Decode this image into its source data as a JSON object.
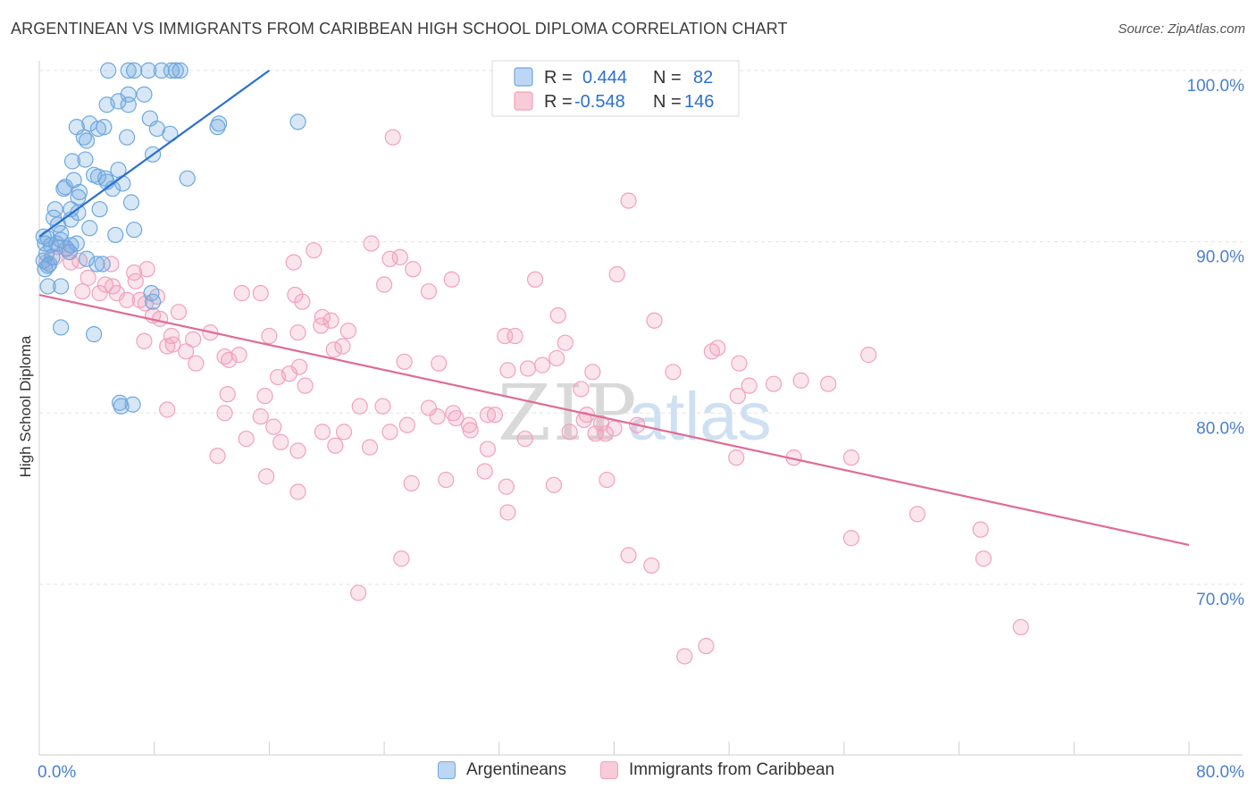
{
  "title": "ARGENTINEAN VS IMMIGRANTS FROM CARIBBEAN HIGH SCHOOL DIPLOMA CORRELATION CHART",
  "source": "Source: ZipAtlas.com",
  "chart_data": {
    "type": "scatter",
    "title": "ARGENTINEAN VS IMMIGRANTS FROM CARIBBEAN HIGH SCHOOL DIPLOMA CORRELATION CHART",
    "ylabel": "High School Diploma",
    "xlabel": "",
    "xlim": [
      0,
      80
    ],
    "ylim": [
      60,
      101
    ],
    "x_tick_labels": [
      "0.0%",
      "80.0%"
    ],
    "y_ticks": [
      70,
      80,
      90,
      100
    ],
    "y_tick_labels": [
      "70.0%",
      "80.0%",
      "90.0%",
      "100.0%"
    ],
    "grid": true,
    "watermark": "ZIPatlas",
    "legend_top": [
      {
        "r_label": "R =",
        "r_value": "0.444",
        "n_label": "N =",
        "n_value": "82"
      },
      {
        "r_label": "R =",
        "r_value": "-0.548",
        "n_label": "N =",
        "n_value": "146"
      }
    ],
    "series": [
      {
        "name": "Argentineans",
        "color": "#6fa8e0",
        "line_color": "#2b6fd1",
        "trendline": {
          "x": [
            0,
            16
          ],
          "y": [
            90.3,
            100.0
          ]
        },
        "points": [
          [
            4.8,
            100
          ],
          [
            6.2,
            100
          ],
          [
            6.6,
            100
          ],
          [
            7.6,
            100
          ],
          [
            8.5,
            100
          ],
          [
            9.2,
            100
          ],
          [
            9.5,
            100
          ],
          [
            9.8,
            100
          ],
          [
            6.2,
            98.6
          ],
          [
            7.3,
            98.6
          ],
          [
            4.7,
            98.0
          ],
          [
            6.2,
            98.0
          ],
          [
            5.5,
            98.2
          ],
          [
            7.7,
            97.2
          ],
          [
            3.5,
            96.9
          ],
          [
            2.6,
            96.7
          ],
          [
            4.1,
            96.6
          ],
          [
            4.5,
            96.7
          ],
          [
            12.5,
            96.9
          ],
          [
            12.4,
            96.7
          ],
          [
            18,
            97
          ],
          [
            8.2,
            96.6
          ],
          [
            3.1,
            96.1
          ],
          [
            6.1,
            96.1
          ],
          [
            9.1,
            96.3
          ],
          [
            3.3,
            95.9
          ],
          [
            7.9,
            95.1
          ],
          [
            3.2,
            94.8
          ],
          [
            2.3,
            94.7
          ],
          [
            5.5,
            94.2
          ],
          [
            3.8,
            93.9
          ],
          [
            4.1,
            93.8
          ],
          [
            4.6,
            93.7
          ],
          [
            10.3,
            93.7
          ],
          [
            4.7,
            93.5
          ],
          [
            2.4,
            93.6
          ],
          [
            5.8,
            93.4
          ],
          [
            1.7,
            93.1
          ],
          [
            1.8,
            93.2
          ],
          [
            2.8,
            92.9
          ],
          [
            5.1,
            93.1
          ],
          [
            2.7,
            92.6
          ],
          [
            6.4,
            92.3
          ],
          [
            2.2,
            91.9
          ],
          [
            1.1,
            91.9
          ],
          [
            2.7,
            91.7
          ],
          [
            4.2,
            91.9
          ],
          [
            1.0,
            91.4
          ],
          [
            1.3,
            91.0
          ],
          [
            2.2,
            91.3
          ],
          [
            0.6,
            90.2
          ],
          [
            1.5,
            90.5
          ],
          [
            5.3,
            90.4
          ],
          [
            3.5,
            90.8
          ],
          [
            6.6,
            90.7
          ],
          [
            0.4,
            89.9
          ],
          [
            0.8,
            89.8
          ],
          [
            1.2,
            89.9
          ],
          [
            2.2,
            89.8
          ],
          [
            1.5,
            90.1
          ],
          [
            0.5,
            89.3
          ],
          [
            0.3,
            88.9
          ],
          [
            0.7,
            88.7
          ],
          [
            3.3,
            89.0
          ],
          [
            4.0,
            88.7
          ],
          [
            4.4,
            88.7
          ],
          [
            1.5,
            87.4
          ],
          [
            0.6,
            87.4
          ],
          [
            0.4,
            88.4
          ],
          [
            2.6,
            89.9
          ],
          [
            7.8,
            87.0
          ],
          [
            7.9,
            86.5
          ],
          [
            1.5,
            85.0
          ],
          [
            3.8,
            84.6
          ],
          [
            5.6,
            80.6
          ],
          [
            5.7,
            80.4
          ],
          [
            6.5,
            80.5
          ],
          [
            0.3,
            90.3
          ],
          [
            0.9,
            89.1
          ],
          [
            1.9,
            89.6
          ],
          [
            0.6,
            88.6
          ],
          [
            2.1,
            89.4
          ]
        ]
      },
      {
        "name": "Immigrants from Caribbean",
        "color": "#f2a1bb",
        "line_color": "#e06b93",
        "trendline": {
          "x": [
            0,
            80
          ],
          "y": [
            86.9,
            72.3
          ]
        },
        "points": [
          [
            24.6,
            96.1
          ],
          [
            41.0,
            92.4
          ],
          [
            23.1,
            89.9
          ],
          [
            19.1,
            89.5
          ],
          [
            24.4,
            89.0
          ],
          [
            25.1,
            89.1
          ],
          [
            17.7,
            88.8
          ],
          [
            26.0,
            88.4
          ],
          [
            40.2,
            88.1
          ],
          [
            28.7,
            87.8
          ],
          [
            34.5,
            87.8
          ],
          [
            24.0,
            87.5
          ],
          [
            27.1,
            87.1
          ],
          [
            14.1,
            87.0
          ],
          [
            15.4,
            87.0
          ],
          [
            17.8,
            86.9
          ],
          [
            18.3,
            86.5
          ],
          [
            36.1,
            85.7
          ],
          [
            19.7,
            85.6
          ],
          [
            20.3,
            85.4
          ],
          [
            19.6,
            85.1
          ],
          [
            42.8,
            85.4
          ],
          [
            21.5,
            84.8
          ],
          [
            18.0,
            84.7
          ],
          [
            16.0,
            84.5
          ],
          [
            32.4,
            84.5
          ],
          [
            33.1,
            84.5
          ],
          [
            36.6,
            84.1
          ],
          [
            21.1,
            83.9
          ],
          [
            20.5,
            83.7
          ],
          [
            47.2,
            83.8
          ],
          [
            46.8,
            83.6
          ],
          [
            57.7,
            83.4
          ],
          [
            13.9,
            83.4
          ],
          [
            13.2,
            83.1
          ],
          [
            12.9,
            83.3
          ],
          [
            10.9,
            82.9
          ],
          [
            25.4,
            83.0
          ],
          [
            27.8,
            82.9
          ],
          [
            32.6,
            82.5
          ],
          [
            34.0,
            82.6
          ],
          [
            35.0,
            82.8
          ],
          [
            36.0,
            83.2
          ],
          [
            38.5,
            82.4
          ],
          [
            44.1,
            82.4
          ],
          [
            48.7,
            82.9
          ],
          [
            51.1,
            81.7
          ],
          [
            53.0,
            81.9
          ],
          [
            16.6,
            82.1
          ],
          [
            18.1,
            82.7
          ],
          [
            17.4,
            82.3
          ],
          [
            18.5,
            81.6
          ],
          [
            54.9,
            81.7
          ],
          [
            37.7,
            81.4
          ],
          [
            49.4,
            81.6
          ],
          [
            48.6,
            81.0
          ],
          [
            13.1,
            81.1
          ],
          [
            15.7,
            81.0
          ],
          [
            27.1,
            80.3
          ],
          [
            22.3,
            80.4
          ],
          [
            23.9,
            80.4
          ],
          [
            28.8,
            80.0
          ],
          [
            29.0,
            79.7
          ],
          [
            29.9,
            79.3
          ],
          [
            27.7,
            79.8
          ],
          [
            31.2,
            79.9
          ],
          [
            31.7,
            79.9
          ],
          [
            38.1,
            79.9
          ],
          [
            37.9,
            79.6
          ],
          [
            40.0,
            79.1
          ],
          [
            41.6,
            79.3
          ],
          [
            39.1,
            79.4
          ],
          [
            39.4,
            78.8
          ],
          [
            36.9,
            78.9
          ],
          [
            30.0,
            79.0
          ],
          [
            38.7,
            78.8
          ],
          [
            19.7,
            78.9
          ],
          [
            21.2,
            78.9
          ],
          [
            16.3,
            79.2
          ],
          [
            12.9,
            80.0
          ],
          [
            15.4,
            79.8
          ],
          [
            25.6,
            79.3
          ],
          [
            24.4,
            78.9
          ],
          [
            23.0,
            78.0
          ],
          [
            14.4,
            78.5
          ],
          [
            8.9,
            80.2
          ],
          [
            9.2,
            84.5
          ],
          [
            20.6,
            78.1
          ],
          [
            18.0,
            77.8
          ],
          [
            33.8,
            78.5
          ],
          [
            31.2,
            77.9
          ],
          [
            12.4,
            77.5
          ],
          [
            16.8,
            78.3
          ],
          [
            48.5,
            77.4
          ],
          [
            52.5,
            77.4
          ],
          [
            56.5,
            77.4
          ],
          [
            31.0,
            76.6
          ],
          [
            28.3,
            76.1
          ],
          [
            25.9,
            75.9
          ],
          [
            35.8,
            75.8
          ],
          [
            32.5,
            75.7
          ],
          [
            39.5,
            76.1
          ],
          [
            15.8,
            76.3
          ],
          [
            18.0,
            75.4
          ],
          [
            32.6,
            74.2
          ],
          [
            61.1,
            74.1
          ],
          [
            56.5,
            72.7
          ],
          [
            65.5,
            73.2
          ],
          [
            65.7,
            71.5
          ],
          [
            41.0,
            71.7
          ],
          [
            42.6,
            71.1
          ],
          [
            25.2,
            71.5
          ],
          [
            22.2,
            69.5
          ],
          [
            46.4,
            66.4
          ],
          [
            44.9,
            65.8
          ],
          [
            68.3,
            67.5
          ],
          [
            1.3,
            89.7
          ],
          [
            1.9,
            89.6
          ],
          [
            2.1,
            89.4
          ],
          [
            1.1,
            89.1
          ],
          [
            0.5,
            88.8
          ],
          [
            2.2,
            88.8
          ],
          [
            2.8,
            88.9
          ],
          [
            5.0,
            88.7
          ],
          [
            3.4,
            87.9
          ],
          [
            4.6,
            87.5
          ],
          [
            5.1,
            87.4
          ],
          [
            6.7,
            87.7
          ],
          [
            3.0,
            87.1
          ],
          [
            4.2,
            87.0
          ],
          [
            5.4,
            87.0
          ],
          [
            6.1,
            86.6
          ],
          [
            7.0,
            86.6
          ],
          [
            8.2,
            86.8
          ],
          [
            7.4,
            86.4
          ],
          [
            9.7,
            85.9
          ],
          [
            7.9,
            85.7
          ],
          [
            8.4,
            85.5
          ],
          [
            10.7,
            84.3
          ],
          [
            11.9,
            84.7
          ],
          [
            7.3,
            84.2
          ],
          [
            8.9,
            83.9
          ],
          [
            9.3,
            84.0
          ],
          [
            10.2,
            83.6
          ],
          [
            6.6,
            88.2
          ],
          [
            7.5,
            88.4
          ]
        ]
      }
    ]
  },
  "legend_bottom": [
    "Argentineans",
    "Immigrants from Caribbean"
  ]
}
